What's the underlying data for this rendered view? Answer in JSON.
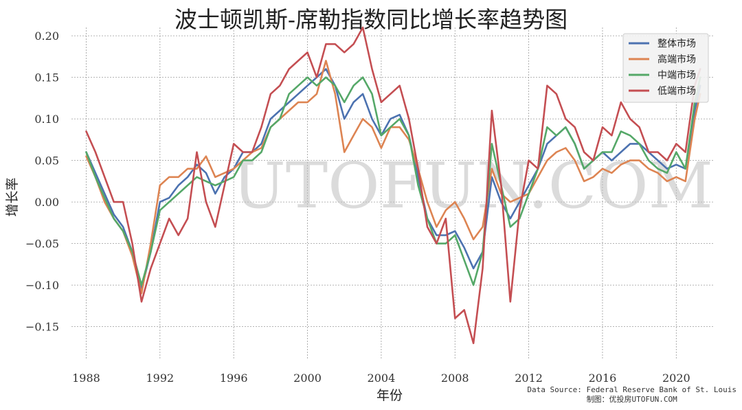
{
  "title": "波士顿凯斯-席勒指数同比增长率趋势图",
  "watermark": "UTOFUN.COM",
  "source_line1": "Data Source: Federal Reserve Bank of St. Louis",
  "source_line2": "制图：优投房UTOFUN.COM",
  "chart_data": {
    "type": "line",
    "xlabel": "年份",
    "ylabel": "增长率",
    "xlim": [
      1987.2,
      2022.0
    ],
    "ylim": [
      -0.19,
      0.21
    ],
    "xticks": [
      1988,
      1992,
      1996,
      2000,
      2004,
      2008,
      2012,
      2016,
      2020
    ],
    "xtick_labels": [
      "1988",
      "1992",
      "1996",
      "2000",
      "2004",
      "2008",
      "2012",
      "2016",
      "2020"
    ],
    "yticks": [
      -0.15,
      -0.1,
      -0.05,
      0.0,
      0.05,
      0.1,
      0.15,
      0.2
    ],
    "ytick_labels": [
      "-0.15",
      "-0.10",
      "-0.05",
      "0.00",
      "0.05",
      "0.10",
      "0.15",
      "0.20"
    ],
    "grid": true,
    "legend_position": "top-right",
    "series": [
      {
        "name": "整体市场",
        "color": "#4c72b0",
        "x": [
          1988,
          1988.5,
          1989,
          1989.5,
          1990,
          1990.5,
          1991,
          1991.5,
          1992,
          1992.5,
          1993,
          1993.5,
          1994,
          1994.5,
          1995,
          1995.5,
          1996,
          1996.5,
          1997,
          1997.5,
          1998,
          1998.5,
          1999,
          1999.5,
          2000,
          2000.5,
          2001,
          2001.5,
          2002,
          2002.5,
          2003,
          2003.5,
          2004,
          2004.5,
          2005,
          2005.5,
          2006,
          2006.5,
          2007,
          2007.5,
          2008,
          2008.5,
          2009,
          2009.5,
          2010,
          2010.5,
          2011,
          2011.5,
          2012,
          2012.5,
          2013,
          2013.5,
          2014,
          2014.5,
          2015,
          2015.5,
          2016,
          2016.5,
          2017,
          2017.5,
          2018,
          2018.5,
          2019,
          2019.5,
          2020,
          2020.5,
          2021,
          2021.3
        ],
        "y": [
          0.06,
          0.035,
          0.01,
          -0.015,
          -0.03,
          -0.06,
          -0.105,
          -0.06,
          0.0,
          0.005,
          0.02,
          0.03,
          0.045,
          0.035,
          0.01,
          0.03,
          0.04,
          0.06,
          0.06,
          0.07,
          0.1,
          0.11,
          0.12,
          0.13,
          0.14,
          0.15,
          0.16,
          0.14,
          0.1,
          0.12,
          0.13,
          0.1,
          0.08,
          0.1,
          0.105,
          0.08,
          0.03,
          -0.02,
          -0.04,
          -0.04,
          -0.035,
          -0.055,
          -0.08,
          -0.06,
          0.03,
          0.0,
          -0.02,
          0.0,
          0.02,
          0.04,
          0.07,
          0.08,
          0.09,
          0.07,
          0.04,
          0.05,
          0.06,
          0.05,
          0.06,
          0.07,
          0.07,
          0.06,
          0.05,
          0.04,
          0.045,
          0.04,
          0.11,
          0.14
        ]
      },
      {
        "name": "高端市场",
        "color": "#dd8452",
        "x": [
          1988,
          1988.5,
          1989,
          1989.5,
          1990,
          1990.5,
          1991,
          1991.5,
          1992,
          1992.5,
          1993,
          1993.5,
          1994,
          1994.5,
          1995,
          1995.5,
          1996,
          1996.5,
          1997,
          1997.5,
          1998,
          1998.5,
          1999,
          1999.5,
          2000,
          2000.5,
          2001,
          2001.5,
          2002,
          2002.5,
          2003,
          2003.5,
          2004,
          2004.5,
          2005,
          2005.5,
          2006,
          2006.5,
          2007,
          2007.5,
          2008,
          2008.5,
          2009,
          2009.5,
          2010,
          2010.5,
          2011,
          2011.5,
          2012,
          2012.5,
          2013,
          2013.5,
          2014,
          2014.5,
          2015,
          2015.5,
          2016,
          2016.5,
          2017,
          2017.5,
          2018,
          2018.5,
          2019,
          2019.5,
          2020,
          2020.5,
          2021,
          2021.3
        ],
        "y": [
          0.055,
          0.03,
          0.0,
          -0.02,
          -0.035,
          -0.065,
          -0.11,
          -0.05,
          0.02,
          0.03,
          0.03,
          0.04,
          0.04,
          0.055,
          0.03,
          0.035,
          0.04,
          0.05,
          0.06,
          0.065,
          0.09,
          0.1,
          0.11,
          0.12,
          0.12,
          0.13,
          0.17,
          0.13,
          0.06,
          0.08,
          0.1,
          0.09,
          0.065,
          0.09,
          0.09,
          0.075,
          0.04,
          0.0,
          -0.03,
          -0.01,
          0.0,
          -0.02,
          -0.045,
          -0.03,
          0.04,
          0.01,
          0.0,
          0.005,
          0.01,
          0.03,
          0.05,
          0.06,
          0.065,
          0.05,
          0.025,
          0.03,
          0.04,
          0.035,
          0.045,
          0.05,
          0.05,
          0.04,
          0.035,
          0.025,
          0.03,
          0.025,
          0.1,
          0.13
        ]
      },
      {
        "name": "中端市场",
        "color": "#55a868",
        "x": [
          1988,
          1988.5,
          1989,
          1989.5,
          1990,
          1990.5,
          1991,
          1991.5,
          1992,
          1992.5,
          1993,
          1993.5,
          1994,
          1994.5,
          1995,
          1995.5,
          1996,
          1996.5,
          1997,
          1997.5,
          1998,
          1998.5,
          1999,
          1999.5,
          2000,
          2000.5,
          2001,
          2001.5,
          2002,
          2002.5,
          2003,
          2003.5,
          2004,
          2004.5,
          2005,
          2005.5,
          2006,
          2006.5,
          2007,
          2007.5,
          2008,
          2008.5,
          2009,
          2009.5,
          2010,
          2010.5,
          2011,
          2011.5,
          2012,
          2012.5,
          2013,
          2013.5,
          2014,
          2014.5,
          2015,
          2015.5,
          2016,
          2016.5,
          2017,
          2017.5,
          2018,
          2018.5,
          2019,
          2019.5,
          2020,
          2020.5,
          2021,
          2021.3
        ],
        "y": [
          0.06,
          0.03,
          0.005,
          -0.02,
          -0.035,
          -0.06,
          -0.1,
          -0.06,
          -0.01,
          0.0,
          0.01,
          0.02,
          0.03,
          0.025,
          0.02,
          0.025,
          0.03,
          0.05,
          0.05,
          0.06,
          0.09,
          0.1,
          0.13,
          0.14,
          0.15,
          0.14,
          0.15,
          0.14,
          0.12,
          0.14,
          0.15,
          0.13,
          0.08,
          0.09,
          0.1,
          0.08,
          0.02,
          -0.02,
          -0.05,
          -0.05,
          -0.04,
          -0.07,
          -0.1,
          -0.06,
          0.07,
          0.02,
          -0.03,
          -0.02,
          0.01,
          0.04,
          0.09,
          0.08,
          0.09,
          0.07,
          0.04,
          0.05,
          0.06,
          0.06,
          0.085,
          0.08,
          0.07,
          0.05,
          0.04,
          0.035,
          0.06,
          0.04,
          0.12,
          0.15
        ]
      },
      {
        "name": "低端市场",
        "color": "#c44e52",
        "x": [
          1988,
          1988.5,
          1989,
          1989.5,
          1990,
          1990.5,
          1991,
          1991.5,
          1992,
          1992.5,
          1993,
          1993.5,
          1994,
          1994.5,
          1995,
          1995.5,
          1996,
          1996.5,
          1997,
          1997.5,
          1998,
          1998.5,
          1999,
          1999.5,
          2000,
          2000.5,
          2001,
          2001.5,
          2002,
          2002.5,
          2003,
          2003.5,
          2004,
          2004.5,
          2005,
          2005.5,
          2006,
          2006.5,
          2007,
          2007.5,
          2008,
          2008.5,
          2009,
          2009.5,
          2010,
          2010.5,
          2011,
          2011.5,
          2012,
          2012.5,
          2013,
          2013.5,
          2014,
          2014.5,
          2015,
          2015.5,
          2016,
          2016.5,
          2017,
          2017.5,
          2018,
          2018.5,
          2019,
          2019.5,
          2020,
          2020.5,
          2021,
          2021.3
        ],
        "y": [
          0.085,
          0.06,
          0.03,
          0.0,
          0.0,
          -0.05,
          -0.12,
          -0.08,
          -0.05,
          -0.02,
          -0.04,
          -0.02,
          0.06,
          0.0,
          -0.03,
          0.02,
          0.07,
          0.06,
          0.06,
          0.09,
          0.13,
          0.14,
          0.16,
          0.17,
          0.18,
          0.15,
          0.19,
          0.19,
          0.18,
          0.19,
          0.21,
          0.16,
          0.12,
          0.13,
          0.14,
          0.1,
          0.04,
          -0.03,
          -0.05,
          -0.02,
          -0.14,
          -0.13,
          -0.17,
          -0.08,
          0.11,
          0.02,
          -0.12,
          -0.01,
          0.05,
          0.04,
          0.14,
          0.13,
          0.1,
          0.09,
          0.06,
          0.05,
          0.09,
          0.08,
          0.12,
          0.1,
          0.09,
          0.06,
          0.06,
          0.05,
          0.07,
          0.06,
          0.14,
          0.16
        ]
      }
    ]
  }
}
